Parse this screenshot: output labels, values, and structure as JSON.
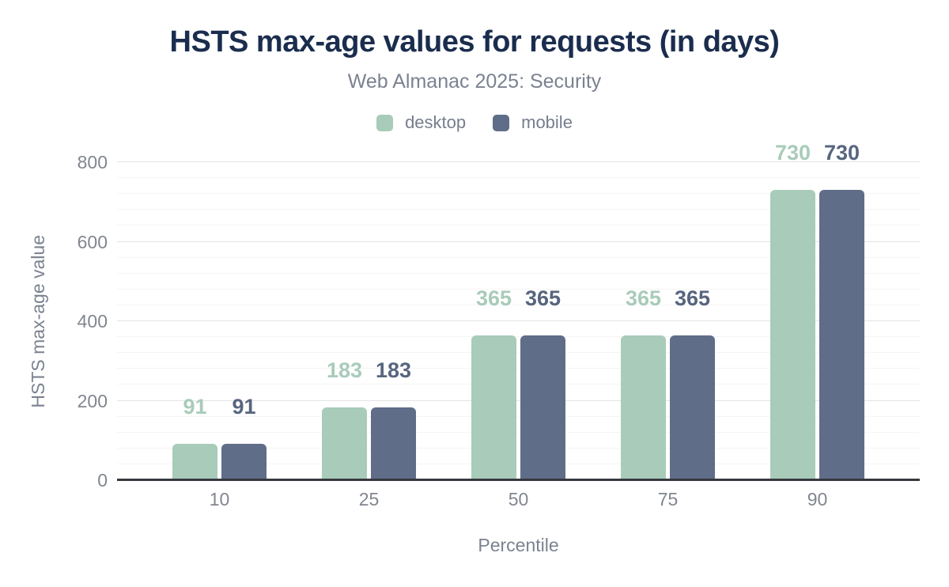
{
  "title": "HSTS max-age values for requests (in days)",
  "subtitle": "Web Almanac 2025: Security",
  "chart_data": {
    "type": "bar",
    "categories": [
      "10",
      "25",
      "50",
      "75",
      "90"
    ],
    "series": [
      {
        "name": "desktop",
        "color": "#a9cbba",
        "label_color": "#a9cbba",
        "values": [
          91,
          183,
          365,
          365,
          730
        ]
      },
      {
        "name": "mobile",
        "color": "#5f6d88",
        "label_color": "#57657f",
        "values": [
          91,
          183,
          365,
          365,
          730
        ]
      }
    ],
    "title": "HSTS max-age values for requests (in days)",
    "subtitle": "Web Almanac 2025: Security",
    "xlabel": "Percentile",
    "ylabel": "HSTS max-age value",
    "ylim": [
      0,
      800
    ],
    "yticks": [
      0,
      200,
      400,
      600,
      800
    ],
    "minor_tick_step": 40,
    "grid": true,
    "legend_position": "top",
    "data_labels_visible": true
  },
  "colors": {
    "title": "#1b2d4e",
    "subtitle_text": "#7b8290",
    "tick_text": "#81868f",
    "axis_line": "#35383e",
    "grid_major": "#e4e4e4",
    "grid_minor": "#f5f5f5",
    "background": "#ffffff"
  }
}
